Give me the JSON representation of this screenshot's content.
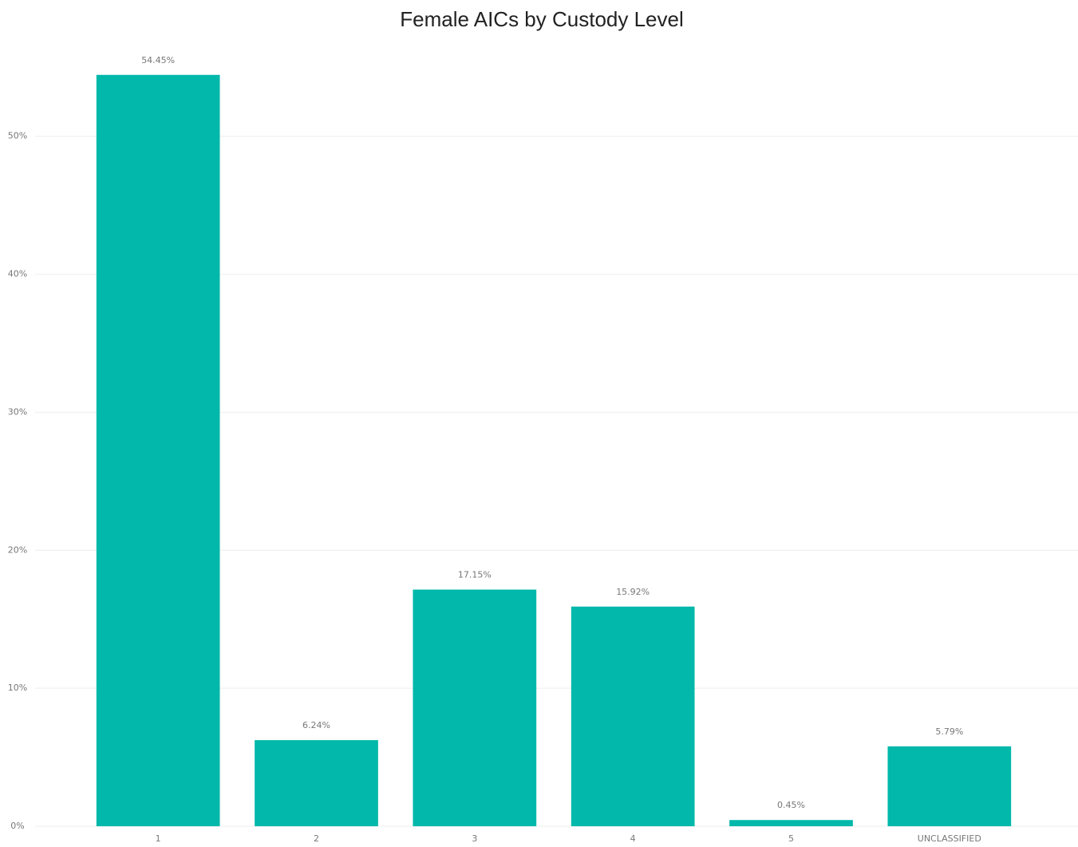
{
  "chart_data": {
    "type": "bar",
    "title": "Female AICs by Custody Level",
    "categories": [
      "1",
      "2",
      "3",
      "4",
      "5",
      "UNCLASSIFIED"
    ],
    "values": [
      54.45,
      6.24,
      17.15,
      15.92,
      0.45,
      5.79
    ],
    "value_labels": [
      "54.45%",
      "6.24%",
      "17.15%",
      "15.92%",
      "0.45%",
      "5.79%"
    ],
    "color": "#01b8aa",
    "ylim": [
      0,
      56
    ],
    "yticks": [
      {
        "value": 0,
        "label": "0%"
      },
      {
        "value": 10,
        "label": "10%"
      },
      {
        "value": 20,
        "label": "20%"
      },
      {
        "value": 30,
        "label": "30%"
      },
      {
        "value": 40,
        "label": "40%"
      },
      {
        "value": 50,
        "label": "50%"
      }
    ],
    "grid": true
  }
}
